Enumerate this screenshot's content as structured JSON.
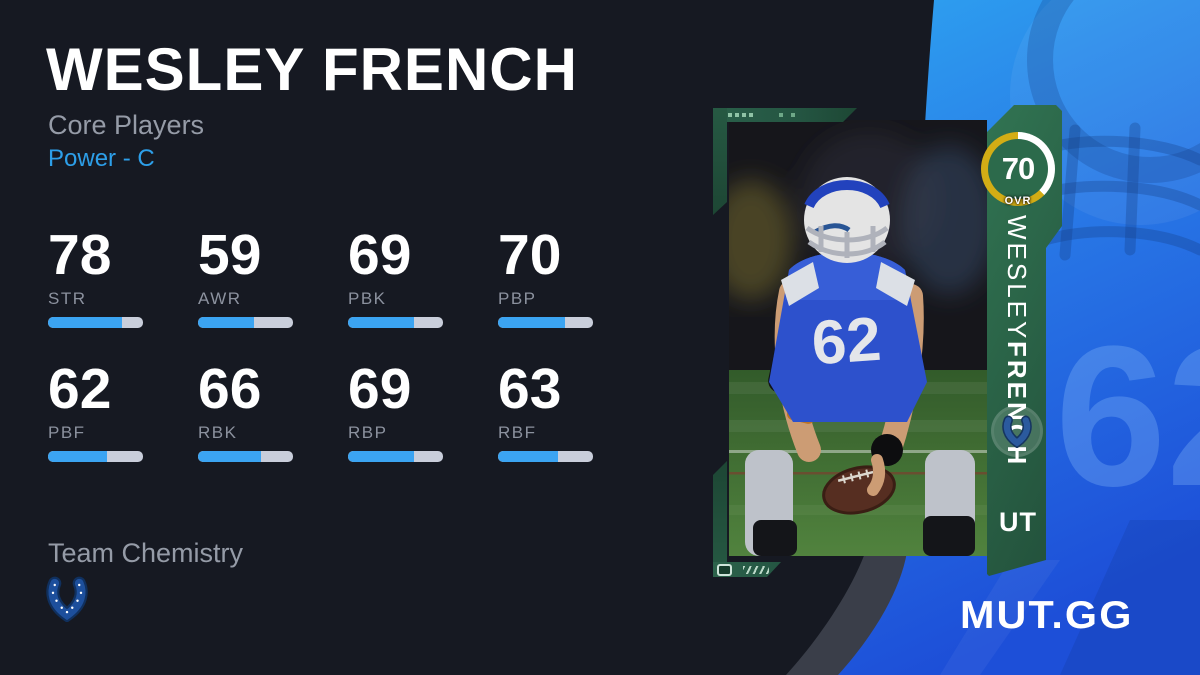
{
  "header": {
    "player_name": "WESLEY FRENCH",
    "program": "Core Players",
    "archetype": "Power - C"
  },
  "stats": {
    "items": [
      {
        "label": "STR",
        "value": 78
      },
      {
        "label": "AWR",
        "value": 59
      },
      {
        "label": "PBK",
        "value": 69
      },
      {
        "label": "PBP",
        "value": 70
      },
      {
        "label": "PBF",
        "value": 62
      },
      {
        "label": "RBK",
        "value": 66
      },
      {
        "label": "RBP",
        "value": 69
      },
      {
        "label": "RBF",
        "value": 63
      }
    ]
  },
  "team_chemistry": {
    "heading": "Team Chemistry",
    "team_icon": "colts-horseshoe-icon"
  },
  "card": {
    "ovr_value": "70",
    "ovr_label": "OVR",
    "first_name": "WESLEY",
    "last_name": "FRENCH",
    "jersey_number": "62",
    "program_tag": "UT",
    "team_icon": "colts-horseshoe-icon"
  },
  "background": {
    "watermark_number": "62"
  },
  "branding": {
    "logo_text": "MUT.GG"
  },
  "colors": {
    "page_bg": "#161922",
    "accent_blue": "#2d9fe9",
    "bar_fill": "#3ba4f2",
    "bar_track": "#c9cedb",
    "bg_blue_top": "#2ea2f0",
    "bg_blue_bottom": "#1d4fd8",
    "gray_band": "#3a3e49",
    "card_green_light": "#47916a",
    "card_green_dark": "#224f3a",
    "ovr_gold": "#d3ad15"
  }
}
